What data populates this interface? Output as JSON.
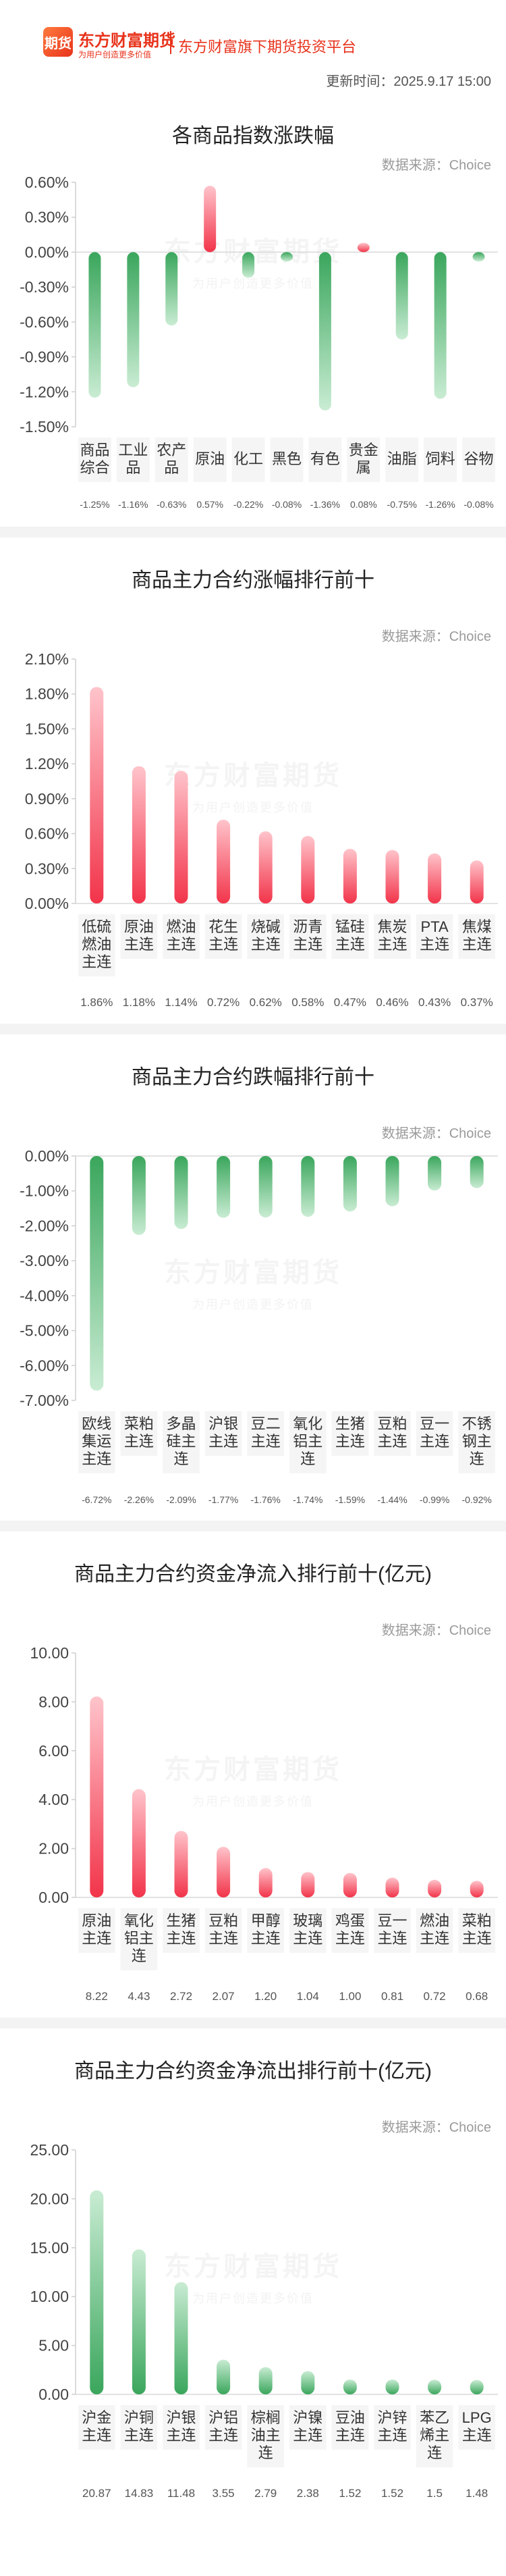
{
  "header": {
    "logo_mark": "期货",
    "logo_name": "东方财富期货",
    "logo_slogan": "为用户创造更多价值",
    "platform": "东方财富旗下期货投资平台",
    "update_time": "更新时间：2025.9.17 15:00"
  },
  "source_label": "数据来源：Choice",
  "watermark": {
    "name": "东方财富期货",
    "slogan": "为用户创造更多价值"
  },
  "chart_data": [
    {
      "id": "index-change",
      "type": "bar",
      "title": "各商品指数涨跌幅",
      "categories": [
        "商品综合",
        "工业品",
        "农产品",
        "原油",
        "化工",
        "黑色",
        "有色",
        "贵金属",
        "油脂",
        "饲料",
        "谷物"
      ],
      "values": [
        -1.25,
        -1.16,
        -0.63,
        0.57,
        -0.22,
        -0.08,
        -1.36,
        0.08,
        -0.75,
        -1.26,
        -0.08
      ],
      "value_labels": [
        "-1.25%",
        "-1.16%",
        "-0.63%",
        "0.57%",
        "-0.22%",
        "-0.08%",
        "-1.36%",
        "0.08%",
        "-0.75%",
        "-1.26%",
        "-0.08%"
      ],
      "ylim": [
        -1.5,
        0.6
      ],
      "yticks": [
        0.6,
        0.3,
        0.0,
        -0.3,
        -0.6,
        -0.9,
        -1.2,
        -1.5
      ],
      "ytick_labels": [
        "0.60%",
        "0.30%",
        "0.00%",
        "-0.30%",
        "-0.60%",
        "-0.90%",
        "-1.20%",
        "-1.50%"
      ],
      "xlabel": "",
      "ylabel": "",
      "grid": false
    },
    {
      "id": "top-gainers",
      "type": "bar",
      "title": "商品主力合约涨幅排行前十",
      "categories": [
        "低硫燃油主连",
        "原油主连",
        "燃油主连",
        "花生主连",
        "烧碱主连",
        "沥青主连",
        "锰硅主连",
        "焦炭主连",
        "PTA主连",
        "焦煤主连"
      ],
      "values": [
        1.86,
        1.18,
        1.14,
        0.72,
        0.62,
        0.58,
        0.47,
        0.46,
        0.43,
        0.37
      ],
      "value_labels": [
        "1.86%",
        "1.18%",
        "1.14%",
        "0.72%",
        "0.62%",
        "0.58%",
        "0.47%",
        "0.46%",
        "0.43%",
        "0.37%"
      ],
      "ylim": [
        0,
        2.1
      ],
      "yticks": [
        2.1,
        1.8,
        1.5,
        1.2,
        0.9,
        0.6,
        0.3,
        0.0
      ],
      "ytick_labels": [
        "2.10%",
        "1.80%",
        "1.50%",
        "1.20%",
        "0.90%",
        "0.60%",
        "0.30%",
        "0.00%"
      ],
      "xlabel": "",
      "ylabel": "",
      "grid": false
    },
    {
      "id": "top-losers",
      "type": "bar",
      "title": "商品主力合约跌幅排行前十",
      "categories": [
        "欧线集运主连",
        "菜粕主连",
        "多晶硅主连",
        "沪银主连",
        "豆二主连",
        "氧化铝主连",
        "生猪主连",
        "豆粕主连",
        "豆一主连",
        "不锈钢主连"
      ],
      "values": [
        -6.72,
        -2.26,
        -2.09,
        -1.77,
        -1.76,
        -1.74,
        -1.59,
        -1.44,
        -0.99,
        -0.92
      ],
      "value_labels": [
        "-6.72%",
        "-2.26%",
        "-2.09%",
        "-1.77%",
        "-1.76%",
        "-1.74%",
        "-1.59%",
        "-1.44%",
        "-0.99%",
        "-0.92%"
      ],
      "ylim": [
        -7.0,
        0.0
      ],
      "yticks": [
        0.0,
        -1.0,
        -2.0,
        -3.0,
        -4.0,
        -5.0,
        -6.0,
        -7.0
      ],
      "ytick_labels": [
        "0.00%",
        "-1.00%",
        "-2.00%",
        "-3.00%",
        "-4.00%",
        "-5.00%",
        "-6.00%",
        "-7.00%"
      ],
      "xlabel": "",
      "ylabel": "",
      "grid": false
    },
    {
      "id": "top-inflow",
      "type": "bar",
      "title": "商品主力合约资金净流入排行前十(亿元)",
      "categories": [
        "原油主连",
        "氧化铝主连",
        "生猪主连",
        "豆粕主连",
        "甲醇主连",
        "玻璃主连",
        "鸡蛋主连",
        "豆一主连",
        "燃油主连",
        "菜粕主连"
      ],
      "values": [
        8.22,
        4.43,
        2.72,
        2.07,
        1.2,
        1.04,
        1.0,
        0.81,
        0.72,
        0.68
      ],
      "value_labels": [
        "8.22",
        "4.43",
        "2.72",
        "2.07",
        "1.20",
        "1.04",
        "1.00",
        "0.81",
        "0.72",
        "0.68"
      ],
      "ylim": [
        0,
        10
      ],
      "yticks": [
        10,
        8,
        6,
        4,
        2,
        0
      ],
      "ytick_labels": [
        "10.00",
        "8.00",
        "6.00",
        "4.00",
        "2.00",
        "0.00"
      ],
      "xlabel": "",
      "ylabel": "",
      "grid": false
    },
    {
      "id": "top-outflow",
      "type": "bar",
      "title": "商品主力合约资金净流出排行前十(亿元)",
      "categories": [
        "沪金主连",
        "沪铜主连",
        "沪银主连",
        "沪铝主连",
        "棕榈油主连",
        "沪镍主连",
        "豆油主连",
        "沪锌主连",
        "苯乙烯主连",
        "LPG主连"
      ],
      "values": [
        20.87,
        14.83,
        11.48,
        3.55,
        2.79,
        2.38,
        1.52,
        1.52,
        1.5,
        1.48
      ],
      "value_labels": [
        "20.87",
        "14.83",
        "11.48",
        "3.55",
        "2.79",
        "2.38",
        "1.52",
        "1.52",
        "1.5",
        "1.48"
      ],
      "ylim": [
        0,
        25
      ],
      "yticks": [
        25,
        20,
        15,
        10,
        5,
        0
      ],
      "ytick_labels": [
        "25.00",
        "20.00",
        "15.00",
        "10.00",
        "5.00",
        "0.00"
      ],
      "xlabel": "",
      "ylabel": "",
      "grid": false
    }
  ],
  "colors": {
    "positive": "#f2344a",
    "positive_light": "#ffc4cb",
    "negative": "#3aa65c",
    "negative_light": "#c9ecd3",
    "brand": "#e8331c"
  }
}
